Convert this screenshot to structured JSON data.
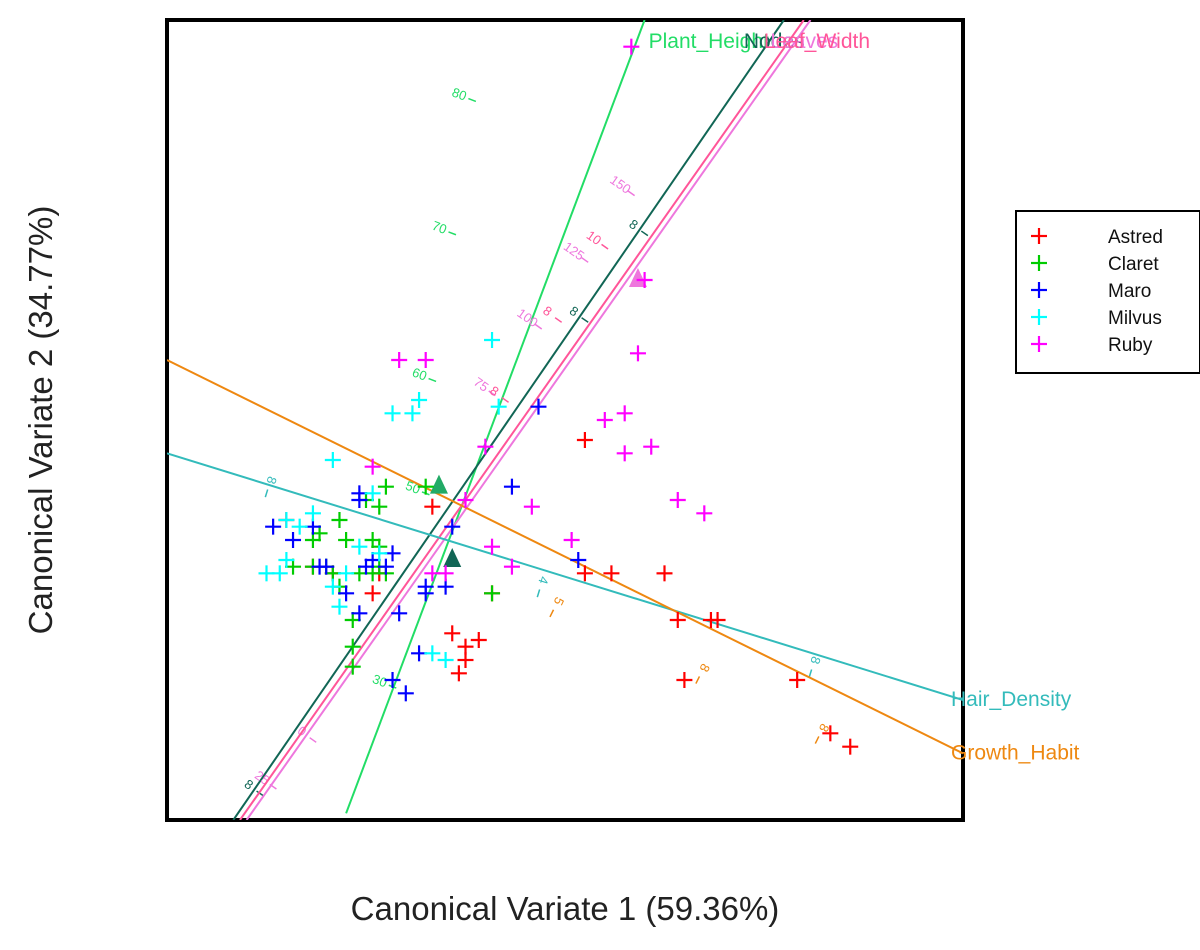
{
  "chart_data": {
    "type": "scatter",
    "title": "",
    "xlabel": "Canonical Variate 1 (59.36%)",
    "ylabel": "Canonical Variate 2 (34.77%)",
    "xlim": [
      -4,
      8
    ],
    "ylim": [
      -4,
      8
    ],
    "grid": false,
    "legend_position": "right",
    "series": [
      {
        "name": "Astred",
        "color": "#ff0000",
        "points": [
          [
            -2.2,
            0.5
          ],
          [
            -1.8,
            -0.2
          ],
          [
            -1.5,
            -0.3
          ],
          [
            -0.9,
            -0.6
          ],
          [
            -0.8,
            -0.3
          ],
          [
            0.0,
            0.7
          ],
          [
            0.3,
            -1.2
          ],
          [
            0.4,
            -1.8
          ],
          [
            0.5,
            -1.6
          ],
          [
            0.5,
            -1.4
          ],
          [
            0.7,
            -1.3
          ],
          [
            0.9,
            -0.6
          ],
          [
            2.3,
            -0.3
          ],
          [
            2.3,
            1.7
          ],
          [
            2.7,
            -0.3
          ],
          [
            3.5,
            -0.3
          ],
          [
            3.7,
            -1.0
          ],
          [
            4.2,
            -1.0
          ],
          [
            4.3,
            -1.0
          ],
          [
            3.8,
            -1.9
          ],
          [
            5.5,
            -1.9
          ],
          [
            6.0,
            -2.7
          ],
          [
            6.3,
            -2.9
          ]
        ]
      },
      {
        "name": "Claret",
        "color": "#00cc00",
        "points": [
          [
            -2.1,
            -0.2
          ],
          [
            -1.8,
            0.2
          ],
          [
            -1.8,
            -0.2
          ],
          [
            -1.7,
            0.3
          ],
          [
            -1.6,
            -0.2
          ],
          [
            -1.5,
            -0.3
          ],
          [
            -1.4,
            -0.5
          ],
          [
            -1.4,
            0.5
          ],
          [
            -1.3,
            0.2
          ],
          [
            -1.2,
            -1.0
          ],
          [
            -1.2,
            -1.4
          ],
          [
            -1.2,
            -1.7
          ],
          [
            -1.1,
            -0.3
          ],
          [
            -1.0,
            0.8
          ],
          [
            -0.9,
            0.2
          ],
          [
            -0.8,
            0.1
          ],
          [
            -0.9,
            -0.3
          ],
          [
            -0.8,
            -0.2
          ],
          [
            -0.8,
            0.7
          ],
          [
            -0.7,
            -0.3
          ],
          [
            -0.7,
            1.0
          ],
          [
            -0.1,
            1.0
          ],
          [
            0.9,
            -0.6
          ]
        ]
      },
      {
        "name": "Maro",
        "color": "#0000ff",
        "points": [
          [
            -2.4,
            0.4
          ],
          [
            -2.1,
            0.2
          ],
          [
            -1.8,
            0.4
          ],
          [
            -1.7,
            -0.2
          ],
          [
            -1.6,
            -0.2
          ],
          [
            -1.3,
            -0.6
          ],
          [
            -1.1,
            -0.9
          ],
          [
            -1.1,
            0.9
          ],
          [
            -1.0,
            -0.2
          ],
          [
            -0.9,
            -0.1
          ],
          [
            -0.7,
            -0.2
          ],
          [
            -0.6,
            0.0
          ],
          [
            -0.5,
            -0.9
          ],
          [
            -0.6,
            -1.9
          ],
          [
            -0.4,
            -2.1
          ],
          [
            -0.2,
            -1.5
          ],
          [
            -0.1,
            -0.5
          ],
          [
            -0.1,
            -0.6
          ],
          [
            0.2,
            -0.5
          ],
          [
            0.3,
            0.4
          ],
          [
            1.2,
            1.0
          ],
          [
            1.6,
            2.2
          ],
          [
            2.2,
            -0.1
          ],
          [
            -1.1,
            0.8
          ]
        ]
      },
      {
        "name": "Milvus",
        "color": "#00ffff",
        "points": [
          [
            -2.5,
            -0.3
          ],
          [
            -2.3,
            -0.3
          ],
          [
            -2.2,
            0.5
          ],
          [
            -2.2,
            -0.1
          ],
          [
            -2.0,
            0.4
          ],
          [
            -1.8,
            0.6
          ],
          [
            -1.5,
            1.4
          ],
          [
            -1.5,
            -0.5
          ],
          [
            -1.4,
            -0.8
          ],
          [
            -1.3,
            -0.3
          ],
          [
            -1.1,
            0.1
          ],
          [
            -0.9,
            0.9
          ],
          [
            -0.8,
            0.0
          ],
          [
            -0.6,
            2.1
          ],
          [
            -0.3,
            2.1
          ],
          [
            -0.2,
            2.3
          ],
          [
            0.0,
            -1.5
          ],
          [
            0.2,
            -1.6
          ],
          [
            0.9,
            3.2
          ],
          [
            1.0,
            2.2
          ]
        ]
      },
      {
        "name": "Ruby",
        "color": "#ff00ff",
        "points": [
          [
            -0.5,
            2.9
          ],
          [
            -0.1,
            2.9
          ],
          [
            -0.9,
            1.3
          ],
          [
            0.2,
            -0.3
          ],
          [
            0.5,
            0.8
          ],
          [
            0.8,
            1.6
          ],
          [
            0.9,
            0.1
          ],
          [
            1.2,
            -0.2
          ],
          [
            1.5,
            0.7
          ],
          [
            2.1,
            0.2
          ],
          [
            2.6,
            2.0
          ],
          [
            2.9,
            2.1
          ],
          [
            2.9,
            1.5
          ],
          [
            3.1,
            3.0
          ],
          [
            3.3,
            1.6
          ],
          [
            3.7,
            0.8
          ],
          [
            4.1,
            0.6
          ],
          [
            3.2,
            4.1
          ],
          [
            3.0,
            7.6
          ],
          [
            0.0,
            -0.3
          ]
        ]
      }
    ],
    "biplot_axes": [
      {
        "label": "Plant_Height",
        "color": "#22dd66",
        "from": [
          -1.3,
          -3.9
        ],
        "to": [
          3.2,
          8.0
        ],
        "ticks": [
          {
            "label": "30",
            "at": [
              -0.6,
              -2.0
            ]
          },
          {
            "label": "50",
            "at": [
              -0.1,
              0.9
            ]
          },
          {
            "label": "60",
            "at": [
              0.0,
              2.6
            ]
          },
          {
            "label": "70",
            "at": [
              0.3,
              4.8
            ]
          },
          {
            "label": "80",
            "at": [
              0.6,
              6.8
            ]
          }
        ]
      },
      {
        "label": "Nodes",
        "color": "#116655",
        "from": [
          -3.0,
          -4.0
        ],
        "to": [
          5.3,
          8.0
        ],
        "ticks": [
          {
            "label": "8",
            "at": [
              2.3,
              3.5
            ]
          },
          {
            "label": "8",
            "at": [
              3.2,
              4.8
            ]
          },
          {
            "label": "8",
            "at": [
              -2.6,
              -3.6
            ]
          }
        ]
      },
      {
        "label": "Leaves",
        "color": "#ee77dd",
        "from": [
          -2.8,
          -4.0
        ],
        "to": [
          5.7,
          8.0
        ],
        "ticks": [
          {
            "label": "75",
            "at": [
              0.9,
              2.4
            ]
          },
          {
            "label": "100",
            "at": [
              1.6,
              3.4
            ]
          },
          {
            "label": "125",
            "at": [
              2.3,
              4.4
            ]
          },
          {
            "label": "150",
            "at": [
              3.0,
              5.4
            ]
          },
          {
            "label": "0",
            "at": [
              -1.8,
              -2.8
            ]
          },
          {
            "label": "25",
            "at": [
              -2.4,
              -3.5
            ]
          }
        ]
      },
      {
        "label": "Leaf_Width",
        "color": "#ff5599",
        "from": [
          -2.9,
          -4.0
        ],
        "to": [
          5.6,
          8.0
        ],
        "ticks": [
          {
            "label": "8",
            "at": [
              1.1,
              2.3
            ]
          },
          {
            "label": "8",
            "at": [
              1.9,
              3.5
            ]
          },
          {
            "label": "10",
            "at": [
              2.6,
              4.6
            ]
          }
        ]
      },
      {
        "label": "Hair_Density",
        "color": "#33bbbb",
        "from": [
          -4.0,
          1.5
        ],
        "to": [
          8.0,
          -2.2
        ],
        "ticks": [
          {
            "label": "8",
            "at": [
              -2.5,
              0.9
            ]
          },
          {
            "label": "4",
            "at": [
              1.6,
              -0.6
            ]
          },
          {
            "label": "8",
            "at": [
              5.7,
              -1.8
            ]
          }
        ]
      },
      {
        "label": "Growth_Habit",
        "color": "#ee8811",
        "from": [
          -4.0,
          2.9
        ],
        "to": [
          8.0,
          -3.0
        ],
        "ticks": [
          {
            "label": "5",
            "at": [
              1.8,
              -0.9
            ]
          },
          {
            "label": "8",
            "at": [
              4.0,
              -1.9
            ]
          },
          {
            "label": "8",
            "at": [
              5.8,
              -2.8
            ]
          }
        ]
      }
    ]
  }
}
